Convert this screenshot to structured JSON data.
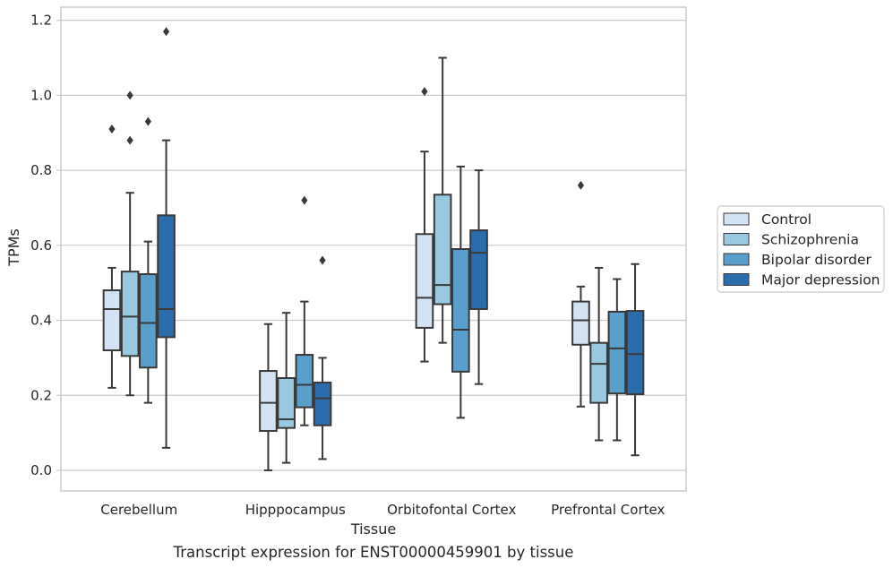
{
  "chart_data": {
    "type": "box",
    "title": "",
    "caption": "Transcript expression for ENST00000459901 by tissue",
    "xlabel": "Tissue",
    "ylabel": "TPMs",
    "ylim": [
      -0.055,
      1.235
    ],
    "yticks": [
      0.0,
      0.2,
      0.4,
      0.6,
      0.8,
      1.0,
      1.2
    ],
    "ytick_labels": [
      "0.0",
      "0.2",
      "0.4",
      "0.6",
      "0.8",
      "1.0",
      "1.2"
    ],
    "grid": "horizontal",
    "legend_position": "right",
    "categories": [
      "Cerebellum",
      "Hipppocampus",
      "Orbitofontal Cortex",
      "Prefrontal Cortex"
    ],
    "series": [
      {
        "name": "Control",
        "color": "#d3e3f3",
        "boxes": [
          {
            "whisker_low": 0.22,
            "q1": 0.32,
            "median": 0.43,
            "q3": 0.48,
            "whisker_high": 0.54,
            "outliers": [
              0.91
            ]
          },
          {
            "whisker_low": 0.0,
            "q1": 0.105,
            "median": 0.18,
            "q3": 0.265,
            "whisker_high": 0.39,
            "outliers": []
          },
          {
            "whisker_low": 0.29,
            "q1": 0.38,
            "median": 0.46,
            "q3": 0.63,
            "whisker_high": 0.85,
            "outliers": [
              1.01
            ]
          },
          {
            "whisker_low": 0.17,
            "q1": 0.335,
            "median": 0.4,
            "q3": 0.45,
            "whisker_high": 0.49,
            "outliers": [
              0.76
            ]
          }
        ]
      },
      {
        "name": "Schizophrenia",
        "color": "#9ac8e0",
        "boxes": [
          {
            "whisker_low": 0.2,
            "q1": 0.305,
            "median": 0.41,
            "q3": 0.53,
            "whisker_high": 0.74,
            "outliers": [
              0.88,
              1.0
            ]
          },
          {
            "whisker_low": 0.02,
            "q1": 0.113,
            "median": 0.136,
            "q3": 0.246,
            "whisker_high": 0.42,
            "outliers": []
          },
          {
            "whisker_low": 0.34,
            "q1": 0.443,
            "median": 0.494,
            "q3": 0.735,
            "whisker_high": 1.1,
            "outliers": []
          },
          {
            "whisker_low": 0.08,
            "q1": 0.18,
            "median": 0.284,
            "q3": 0.34,
            "whisker_high": 0.54,
            "outliers": []
          }
        ]
      },
      {
        "name": "Bipolar disorder",
        "color": "#5a9fcb",
        "boxes": [
          {
            "whisker_low": 0.18,
            "q1": 0.274,
            "median": 0.393,
            "q3": 0.523,
            "whisker_high": 0.61,
            "outliers": [
              0.93
            ]
          },
          {
            "whisker_low": 0.12,
            "q1": 0.168,
            "median": 0.228,
            "q3": 0.308,
            "whisker_high": 0.45,
            "outliers": [
              0.72
            ]
          },
          {
            "whisker_low": 0.14,
            "q1": 0.263,
            "median": 0.375,
            "q3": 0.59,
            "whisker_high": 0.81,
            "outliers": []
          },
          {
            "whisker_low": 0.08,
            "q1": 0.205,
            "median": 0.325,
            "q3": 0.423,
            "whisker_high": 0.51,
            "outliers": []
          }
        ]
      },
      {
        "name": "Major depression",
        "color": "#2a6cac",
        "boxes": [
          {
            "whisker_low": 0.06,
            "q1": 0.355,
            "median": 0.43,
            "q3": 0.68,
            "whisker_high": 0.88,
            "outliers": [
              1.17
            ]
          },
          {
            "whisker_low": 0.03,
            "q1": 0.12,
            "median": 0.192,
            "q3": 0.234,
            "whisker_high": 0.3,
            "outliers": [
              0.56
            ]
          },
          {
            "whisker_low": 0.23,
            "q1": 0.43,
            "median": 0.58,
            "q3": 0.64,
            "whisker_high": 0.8,
            "outliers": []
          },
          {
            "whisker_low": 0.04,
            "q1": 0.203,
            "median": 0.31,
            "q3": 0.425,
            "whisker_high": 0.55,
            "outliers": []
          }
        ]
      }
    ]
  }
}
